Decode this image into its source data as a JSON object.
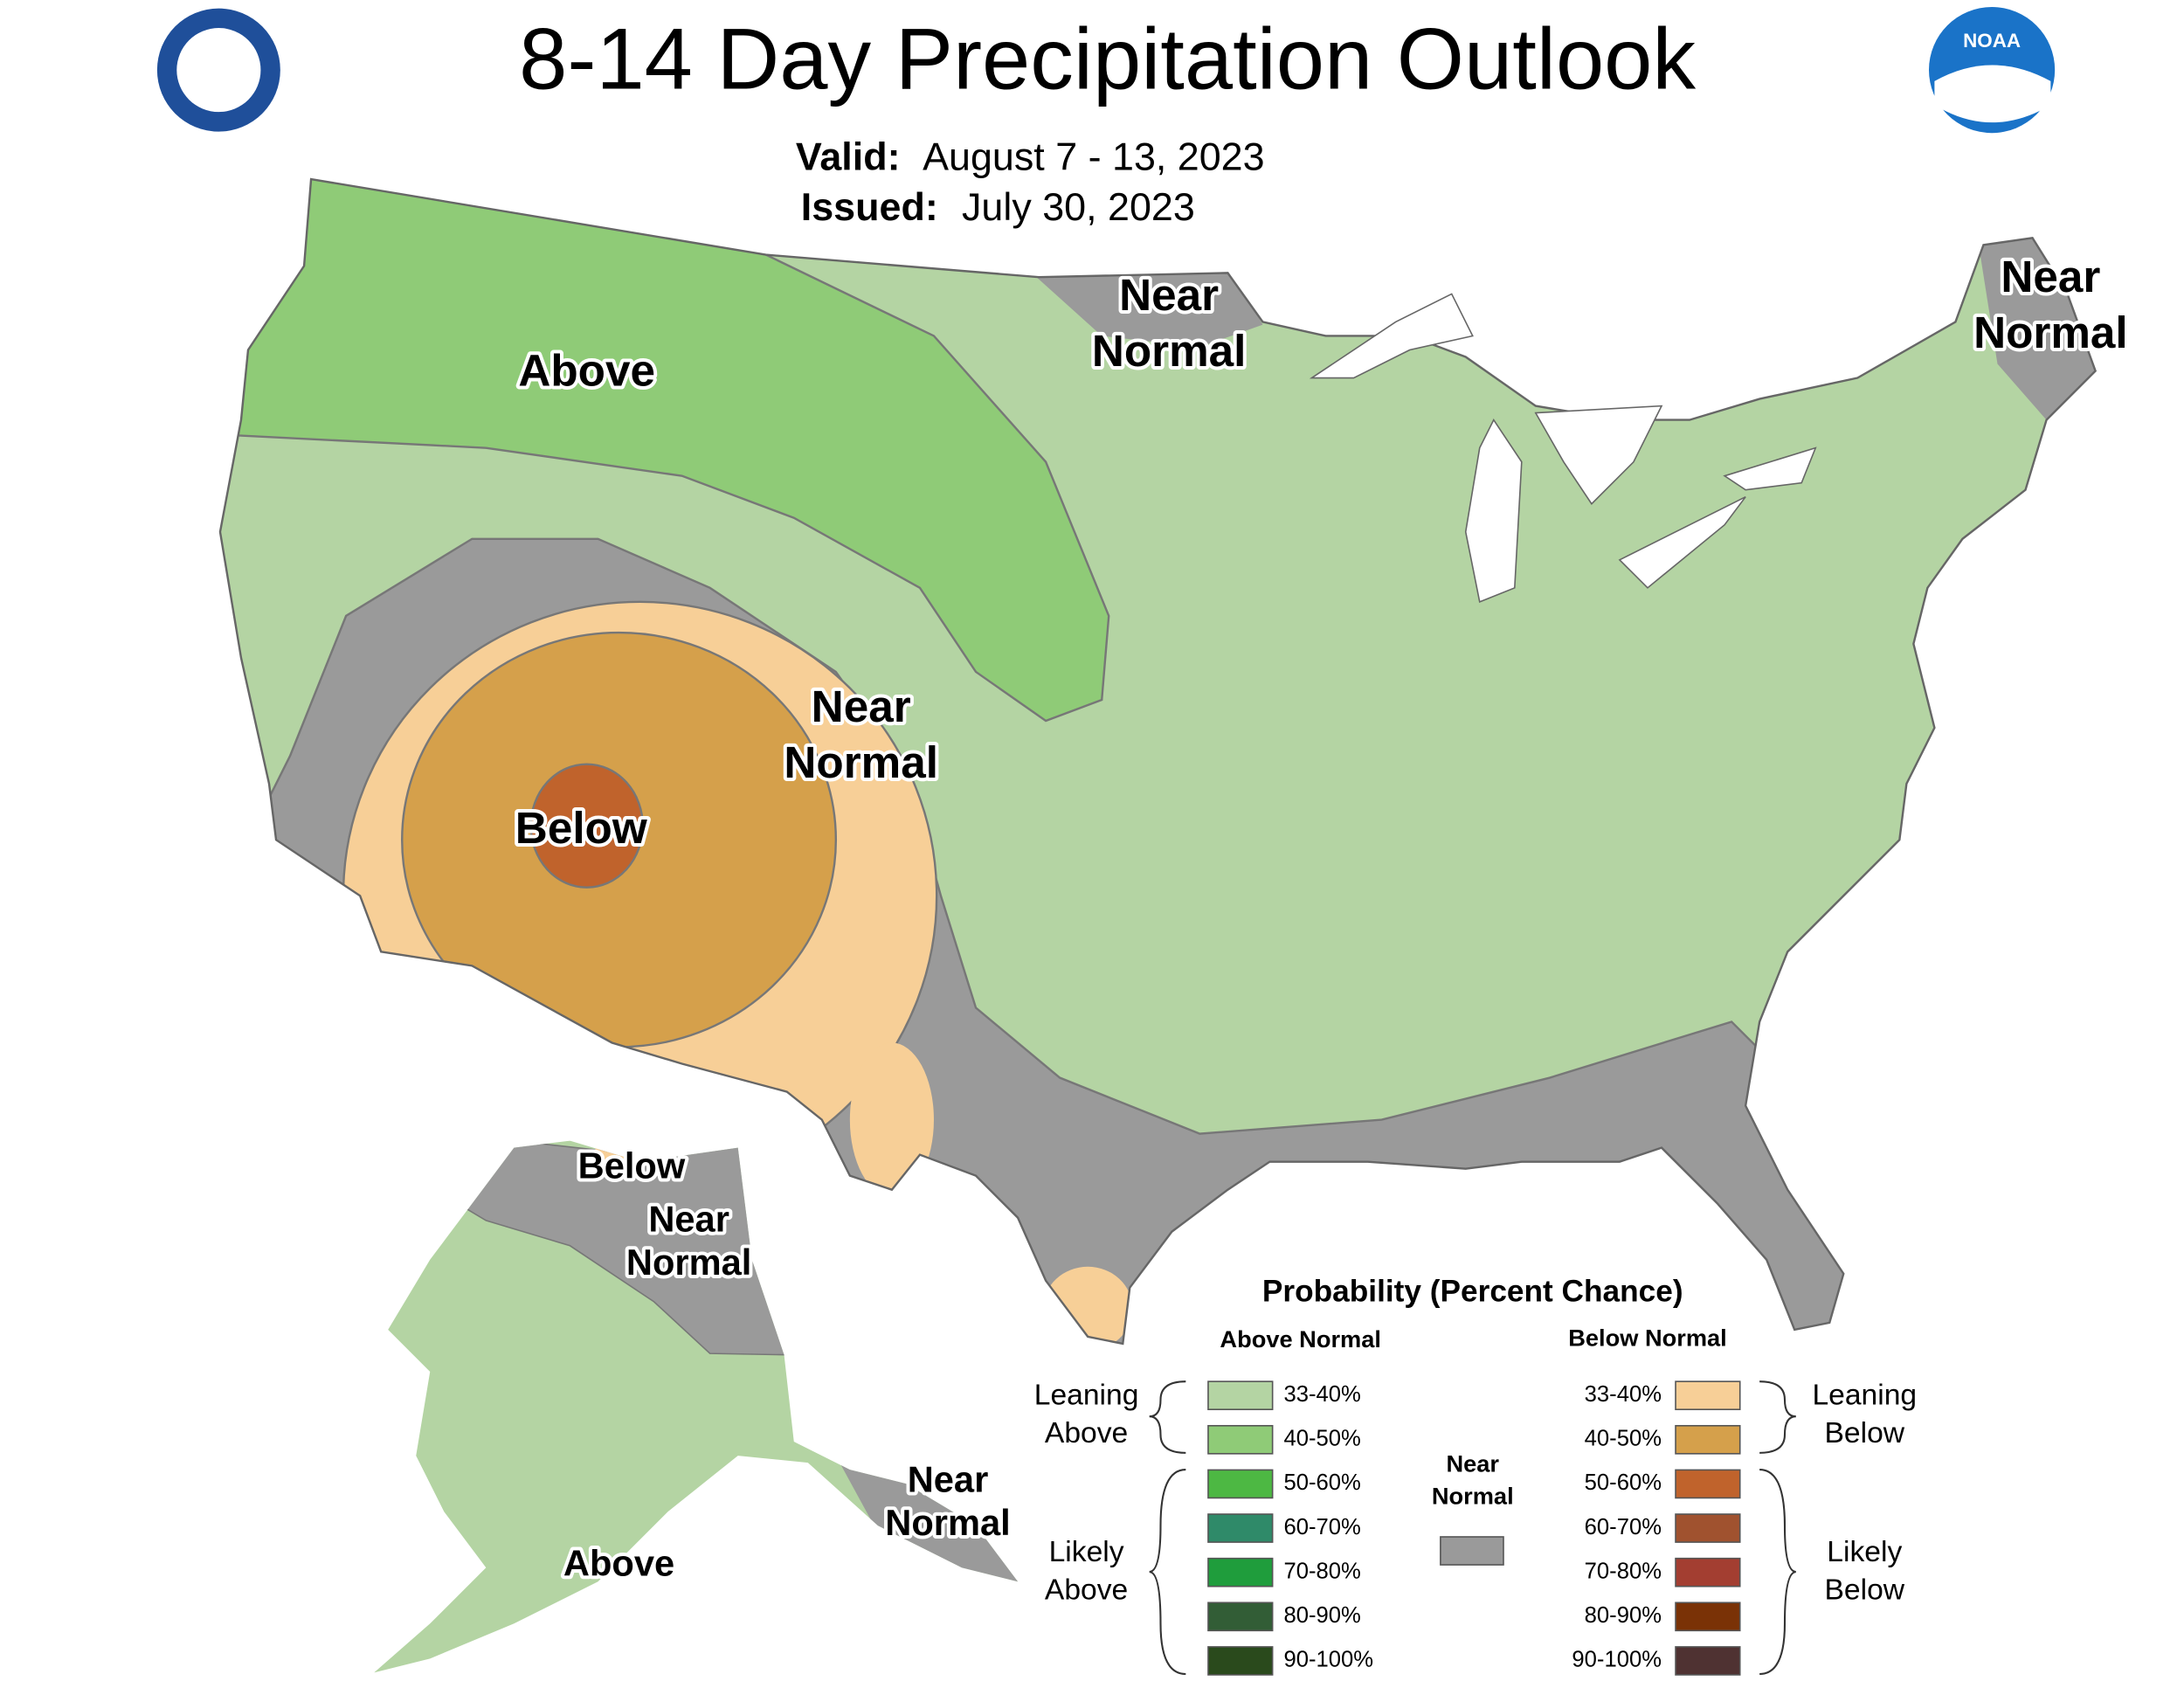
{
  "header": {
    "title": "8-14 Day Precipitation Outlook",
    "valid_label": "Valid:",
    "valid_date": "August 7 - 13, 2023",
    "issued_label": "Issued:",
    "issued_date": "July 30, 2023",
    "noaa_logo": "NOAA"
  },
  "map_labels": [
    {
      "lines": [
        "Above"
      ]
    },
    {
      "lines": [
        "Near",
        "Normal"
      ]
    },
    {
      "lines": [
        "Near",
        "Normal"
      ]
    },
    {
      "lines": [
        "Near",
        "Normal"
      ]
    },
    {
      "lines": [
        "Below"
      ]
    },
    {
      "lines": [
        "Below"
      ]
    },
    {
      "lines": [
        "Near",
        "Normal"
      ]
    },
    {
      "lines": [
        "Near",
        "Normal"
      ]
    },
    {
      "lines": [
        "Above"
      ]
    }
  ],
  "legend": {
    "title": "Probability (Percent Chance)",
    "above_header": "Above Normal",
    "below_header": "Below Normal",
    "near_header": [
      "Near",
      "Normal"
    ],
    "near_color": "#9a9a9a",
    "above": [
      {
        "label": "33-40%",
        "color": "#b4d4a3"
      },
      {
        "label": "40-50%",
        "color": "#8fcb77"
      },
      {
        "label": "50-60%",
        "color": "#4db843"
      },
      {
        "label": "60-70%",
        "color": "#2f8a69"
      },
      {
        "label": "70-80%",
        "color": "#1f9d3c"
      },
      {
        "label": "80-90%",
        "color": "#325d36"
      },
      {
        "label": "90-100%",
        "color": "#2a4a1c"
      }
    ],
    "below": [
      {
        "label": "33-40%",
        "color": "#f7cf97"
      },
      {
        "label": "40-50%",
        "color": "#d5a04b"
      },
      {
        "label": "50-60%",
        "color": "#c0632c"
      },
      {
        "label": "60-70%",
        "color": "#a0522f"
      },
      {
        "label": "70-80%",
        "color": "#a33e31"
      },
      {
        "label": "80-90%",
        "color": "#7a3206"
      },
      {
        "label": "90-100%",
        "color": "#4f3232"
      }
    ],
    "group_labels": {
      "leaning_above": [
        "Leaning",
        "Above"
      ],
      "likely_above": [
        "Likely",
        "Above"
      ],
      "leaning_below": [
        "Leaning",
        "Below"
      ],
      "likely_below": [
        "Likely",
        "Below"
      ]
    }
  }
}
